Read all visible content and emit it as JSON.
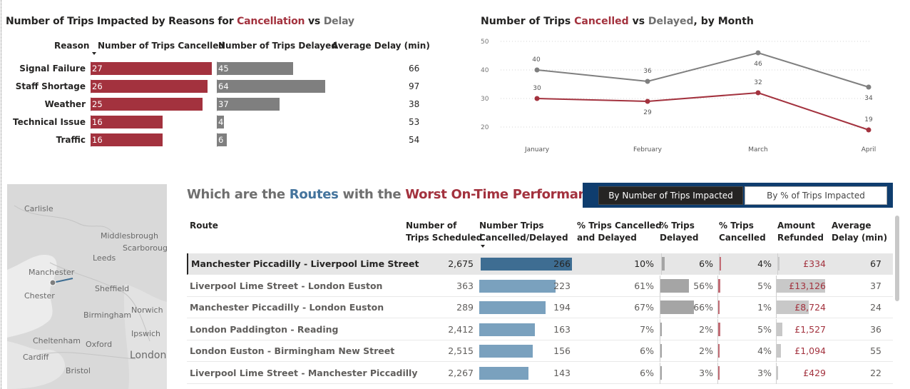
{
  "reasons": {
    "title_start": "Number of Trips Impacted by Reasons for ",
    "title_cancel": "Cancellation",
    "title_vs": " vs ",
    "title_delay": "Delay",
    "headers": {
      "reason": "Reason",
      "cancelled": "Number of Trips Cancelled",
      "delayed": "Number of Trips Delayed",
      "avg_delay": "Average Delay (min)"
    },
    "rows": [
      {
        "reason": "Signal Failure",
        "cancelled": 27,
        "delayed": 45,
        "avg_delay": 66
      },
      {
        "reason": "Staff Shortage",
        "cancelled": 26,
        "delayed": 64,
        "avg_delay": 97
      },
      {
        "reason": "Weather",
        "cancelled": 25,
        "delayed": 37,
        "avg_delay": 38
      },
      {
        "reason": "Technical Issue",
        "cancelled": 16,
        "delayed": 4,
        "avg_delay": 53
      },
      {
        "reason": "Traffic",
        "cancelled": 16,
        "delayed": 6,
        "avg_delay": 54
      }
    ]
  },
  "monthly": {
    "title_start": "Number of Trips ",
    "title_cancel": "Cancelled",
    "title_vs": " vs ",
    "title_delay": "Delayed",
    "title_end": ", by Month"
  },
  "chart_data": {
    "type": "line",
    "title": "Number of Trips Cancelled vs Delayed, by Month",
    "categories": [
      "January",
      "February",
      "March",
      "April"
    ],
    "yticks": [
      20,
      30,
      40,
      50
    ],
    "ylim": [
      15,
      50
    ],
    "grid": true,
    "series": [
      {
        "name": "Delayed",
        "color": "#7f7f7f",
        "values": [
          40,
          36,
          46,
          34
        ]
      },
      {
        "name": "Cancelled",
        "color": "#a3323e",
        "values": [
          30,
          29,
          32,
          19
        ]
      }
    ]
  },
  "map": {
    "labels": [
      "Carlisle",
      "Middlesbrough",
      "Scarborough",
      "Leeds",
      "Manchester",
      "Chester",
      "Sheffield",
      "Birmingham",
      "Norwich",
      "Cheltenham",
      "Ipswich",
      "Oxford",
      "Cardiff",
      "London",
      "Bristol"
    ]
  },
  "routes": {
    "title_start": "Which are the ",
    "title_routes": "Routes",
    "title_mid": " with the ",
    "title_worst": "Worst On-Time Performance",
    "title_end": "?",
    "toggle_count": "By Number of Trips Impacted",
    "toggle_pct": "By % of Trips Impacted",
    "headers": {
      "route": "Route",
      "scheduled_1": "Number of",
      "scheduled_2": "Trips Scheduled",
      "impacted_1": "Number Trips",
      "impacted_2": "Cancelled/Delayed",
      "pct_cd_1": "% Trips Cancelled",
      "pct_cd_2": "and Delayed",
      "pct_d_1": "% Trips",
      "pct_d_2": "Delayed",
      "pct_c_1": "% Trips",
      "pct_c_2": "Cancelled",
      "refund_1": "Amount",
      "refund_2": "Refunded",
      "avg_1": "Average",
      "avg_2": "Delay (min)"
    },
    "rows": [
      {
        "route": "Manchester Piccadilly - Liverpool Lime Street",
        "scheduled": "2,675",
        "impacted": 266,
        "pct_cd": "10%",
        "pct_d": "6%",
        "pct_c": "4%",
        "refund": "£334",
        "avg_delay": "67",
        "refund_value": 334,
        "pct_d_value": 6,
        "pct_c_value": 4
      },
      {
        "route": "Liverpool Lime Street - London Euston",
        "scheduled": "363",
        "impacted": 223,
        "pct_cd": "61%",
        "pct_d": "56%",
        "pct_c": "5%",
        "refund": "£13,126",
        "avg_delay": "37",
        "refund_value": 13126,
        "pct_d_value": 56,
        "pct_c_value": 5
      },
      {
        "route": "Manchester Piccadilly - London Euston",
        "scheduled": "289",
        "impacted": 194,
        "pct_cd": "67%",
        "pct_d": "66%",
        "pct_c": "1%",
        "refund": "£8,724",
        "avg_delay": "24",
        "refund_value": 8724,
        "pct_d_value": 66,
        "pct_c_value": 1
      },
      {
        "route": "London Paddington - Reading",
        "scheduled": "2,412",
        "impacted": 163,
        "pct_cd": "7%",
        "pct_d": "2%",
        "pct_c": "5%",
        "refund": "£1,527",
        "avg_delay": "36",
        "refund_value": 1527,
        "pct_d_value": 2,
        "pct_c_value": 5
      },
      {
        "route": "London Euston - Birmingham New Street",
        "scheduled": "2,515",
        "impacted": 156,
        "pct_cd": "6%",
        "pct_d": "2%",
        "pct_c": "4%",
        "refund": "£1,094",
        "avg_delay": "55",
        "refund_value": 1094,
        "pct_d_value": 2,
        "pct_c_value": 4
      },
      {
        "route": "Liverpool Lime Street - Manchester Piccadilly",
        "scheduled": "2,267",
        "impacted": 143,
        "pct_cd": "6%",
        "pct_d": "3%",
        "pct_c": "3%",
        "refund": "£429",
        "avg_delay": "22",
        "refund_value": 429,
        "pct_d_value": 3,
        "pct_c_value": 3
      }
    ]
  }
}
